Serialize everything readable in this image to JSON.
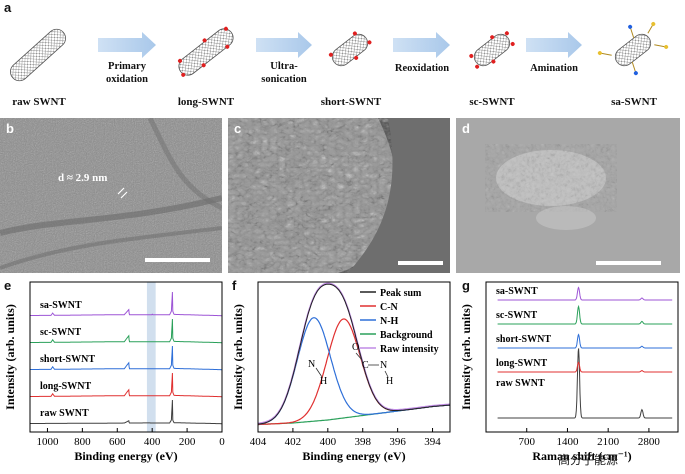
{
  "panel_a": {
    "label": "a",
    "stages": [
      "raw SWNT",
      "long-SWNT",
      "short-SWNT",
      "sc-SWNT",
      "sa-SWNT"
    ],
    "steps": [
      [
        "Primary",
        "oxidation"
      ],
      [
        "Ultra-",
        "sonication"
      ],
      [
        "Reoxidation"
      ],
      [
        "Amination"
      ]
    ]
  },
  "panel_b": {
    "label": "b",
    "annotation": "d ≈ 2.9 nm"
  },
  "panel_c": {
    "label": "c"
  },
  "panel_d": {
    "label": "d"
  },
  "watermark": "高分子能源",
  "chart_data": [
    {
      "panel": "e",
      "type": "line",
      "xlabel": "Binding energy (eV)",
      "ylabel": "Intensity (arb. units)",
      "xlim": [
        1100,
        0
      ],
      "x_ticks": [
        "1000",
        "800",
        "600",
        "400",
        "200",
        "0"
      ],
      "highlight_band": [
        430,
        380
      ],
      "series": [
        {
          "name": "raw SWNT",
          "color": "#404040",
          "x": [
            1100,
            900,
            700,
            560,
            534,
            531,
            500,
            420,
            400,
            300,
            290,
            284,
            282,
            275,
            0
          ],
          "y": [
            0.3,
            0.4,
            0.5,
            0.6,
            2.0,
            0.6,
            0.6,
            0.7,
            0.6,
            0.6,
            2.5,
            15,
            2.5,
            0.8,
            0.2
          ]
        },
        {
          "name": "long-SWNT",
          "color": "#e03030",
          "x": [
            1100,
            980,
            970,
            960,
            900,
            700,
            560,
            534,
            531,
            500,
            400,
            300,
            290,
            284,
            282,
            275,
            0
          ],
          "y": [
            0.3,
            0.4,
            2.0,
            0.5,
            0.5,
            0.7,
            0.8,
            4.5,
            0.8,
            0.8,
            0.8,
            0.8,
            3,
            15,
            3,
            1,
            0.2
          ]
        },
        {
          "name": "short-SWNT",
          "color": "#2e6fd8",
          "x": [
            1100,
            980,
            970,
            960,
            900,
            700,
            560,
            534,
            531,
            500,
            400,
            300,
            290,
            284,
            282,
            275,
            0
          ],
          "y": [
            0.3,
            0.4,
            2.0,
            0.5,
            0.5,
            0.7,
            0.8,
            4.5,
            0.8,
            0.8,
            0.8,
            0.8,
            3,
            15,
            3,
            1,
            0.2
          ]
        },
        {
          "name": "sc-SWNT",
          "color": "#2aa05a",
          "x": [
            1100,
            980,
            970,
            960,
            900,
            700,
            560,
            534,
            531,
            500,
            400,
            300,
            290,
            284,
            282,
            275,
            0
          ],
          "y": [
            0.3,
            0.4,
            2.0,
            0.5,
            0.5,
            0.7,
            0.8,
            4.5,
            0.8,
            0.8,
            0.8,
            0.8,
            3,
            15,
            3,
            1,
            0.2
          ]
        },
        {
          "name": "sa-SWNT",
          "color": "#9d55d6",
          "x": [
            1100,
            980,
            970,
            960,
            900,
            700,
            560,
            534,
            531,
            500,
            402,
            399,
            396,
            300,
            290,
            284,
            282,
            275,
            0
          ],
          "y": [
            0.3,
            0.4,
            1.8,
            0.5,
            0.5,
            0.7,
            0.8,
            4.0,
            0.8,
            0.8,
            0.8,
            1.2,
            0.8,
            0.8,
            3,
            15,
            3,
            1,
            0.2
          ]
        }
      ]
    },
    {
      "panel": "f",
      "type": "line",
      "xlabel": "Binding energy (eV)",
      "ylabel": "Intensity (arb. units)",
      "xlim": [
        404,
        393
      ],
      "x_ticks": [
        "404",
        "402",
        "400",
        "398",
        "396",
        "394"
      ],
      "legend": "top-right",
      "series": [
        {
          "name": "Peak sum",
          "color": "#222222",
          "style": "solid"
        },
        {
          "name": "C-N",
          "color": "#e03030",
          "center": 399.1,
          "height": 0.66,
          "sigma": 0.95
        },
        {
          "name": "N-H",
          "color": "#2e6fd8",
          "center": 400.8,
          "height": 0.69,
          "sigma": 0.95
        },
        {
          "name": "Background",
          "color": "#2aa05a",
          "x": [
            404,
            402,
            400,
            398,
            396,
            394,
            393
          ],
          "y": [
            0.05,
            0.06,
            0.08,
            0.11,
            0.14,
            0.17,
            0.18
          ]
        },
        {
          "name": "Raw intensity",
          "color": "#c08be6",
          "style": "dashed"
        }
      ],
      "annotations": [
        "N",
        "H",
        "C",
        "O",
        "N",
        "H"
      ]
    },
    {
      "panel": "g",
      "type": "line",
      "xlabel": "Raman shift (cm⁻¹)",
      "ylabel": "Intensity (arb. units)",
      "xlim": [
        0,
        3300
      ],
      "x_ticks": [
        "700",
        "1400",
        "2100",
        "2800"
      ],
      "series": [
        {
          "name": "raw SWNT",
          "color": "#404040",
          "peaks": [
            [
              1590,
              1.0
            ],
            [
              2680,
              0.12
            ]
          ]
        },
        {
          "name": "long-SWNT",
          "color": "#e03030",
          "peaks": [
            [
              1590,
              0.35
            ],
            [
              2680,
              0.05
            ]
          ]
        },
        {
          "name": "short-SWNT",
          "color": "#2e6fd8",
          "peaks": [
            [
              1590,
              0.45
            ],
            [
              2680,
              0.06
            ]
          ]
        },
        {
          "name": "sc-SWNT",
          "color": "#2aa05a",
          "peaks": [
            [
              1590,
              0.55
            ],
            [
              2680,
              0.08
            ]
          ]
        },
        {
          "name": "sa-SWNT",
          "color": "#9d55d6",
          "peaks": [
            [
              1590,
              0.45
            ],
            [
              2680,
              0.07
            ]
          ]
        }
      ]
    }
  ]
}
